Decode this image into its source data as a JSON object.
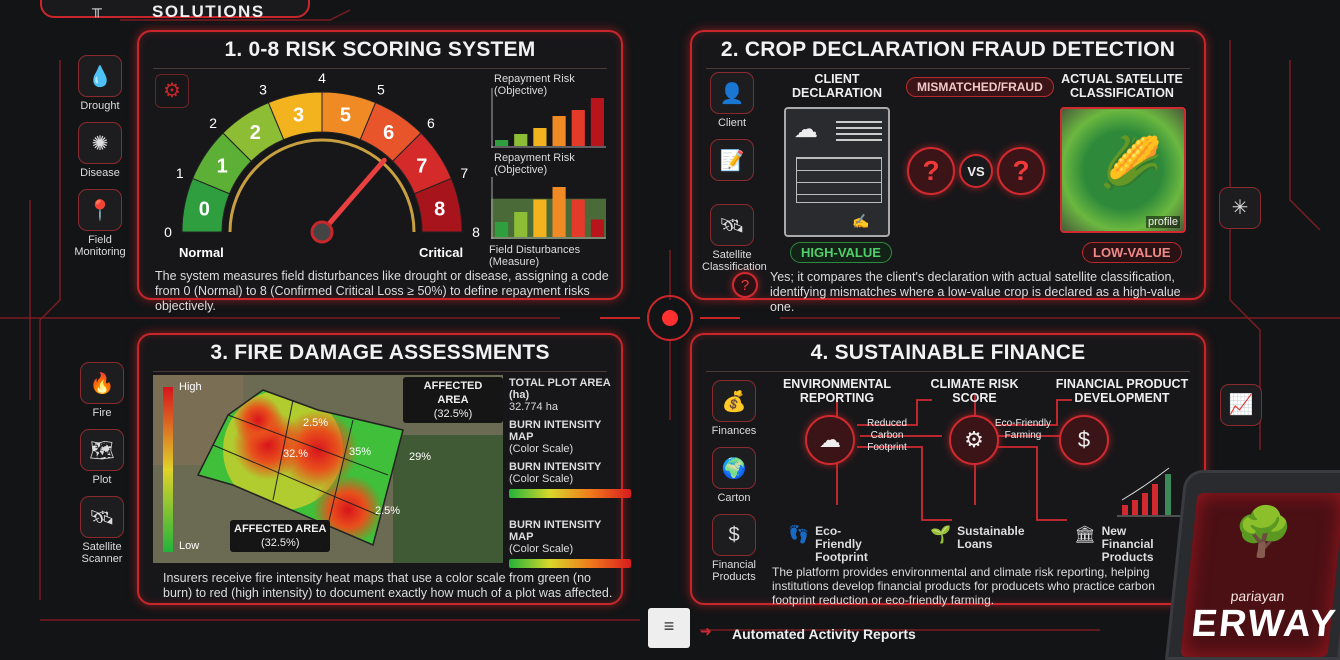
{
  "header": {
    "title_fragment": "SOLUTIONS"
  },
  "panel1": {
    "title": "1. 0-8 RISK SCORING SYSTEM",
    "side_items": [
      {
        "label": "Drought",
        "icon": "drought-icon"
      },
      {
        "label": "Disease",
        "icon": "virus-icon"
      },
      {
        "label": "Field Monitoring",
        "icon": "field-location-icon"
      }
    ],
    "gauge": {
      "outer_labels": [
        "0",
        "1",
        "2",
        "3",
        "4",
        "5",
        "6",
        "7",
        "8"
      ],
      "segment_labels": [
        "0",
        "1",
        "2",
        "3",
        "5",
        "6",
        "7",
        "8"
      ],
      "segment_colors": [
        "#2f9e3e",
        "#5cb035",
        "#8dbd35",
        "#f2b31e",
        "#f08a25",
        "#e8552a",
        "#d42a2a",
        "#a8141c"
      ],
      "needle_value": 6,
      "min_label": "Normal",
      "max_label": "Critical"
    },
    "chart_top": {
      "title": "Repayment Risk (Objective)",
      "values": [
        1,
        2,
        3,
        5,
        6,
        8
      ],
      "colors": [
        "#2f9e3e",
        "#8dbd35",
        "#f2b31e",
        "#f08a25",
        "#e33a2a",
        "#b8141c"
      ]
    },
    "chart_bottom": {
      "title": "Repayment Risk (Objective)",
      "caption": "Field Disturbances (Measure)",
      "values": [
        1.2,
        2,
        3,
        4,
        3,
        1.4
      ],
      "colors": [
        "#2f9e3e",
        "#8dbd35",
        "#f2b31e",
        "#f08a25",
        "#e33a2a",
        "#b8141c"
      ]
    },
    "description": "The system measures field disturbances like drought or disease, assigning a code from 0 (Normal) to 8 (Confirmed Critical Loss ≥ 50%) to define repayment risks objectively."
  },
  "panel2": {
    "title": "2. CROP DECLARATION FRAUD DETECTION",
    "side_items": [
      {
        "label": "Client",
        "icon": "user-icon"
      },
      {
        "label": "",
        "icon": "document-edit-icon"
      },
      {
        "label": "Satellite Classification",
        "icon": "satellite-icon"
      }
    ],
    "client_declaration": "CLIENT DECLARATION",
    "mismatch": "MISMATCHED/FRAUD",
    "satellite": "ACTUAL SATELLITE CLASSIFICATION",
    "vs": "VS",
    "profile": "profile",
    "high_value": "HIGH-VALUE",
    "low_value": "LOW-VALUE",
    "description": "Yes; it compares the client's declaration with actual satellite classification, identifying mismatches where a low-value crop is declared as a high-value one."
  },
  "panel3": {
    "title": "3. FIRE DAMAGE ASSESSMENTS",
    "side_items": [
      {
        "label": "Fire",
        "icon": "fire-icon"
      },
      {
        "label": "Plot",
        "icon": "map-icon"
      },
      {
        "label": "Satellite Scanner",
        "icon": "satellite-icon"
      }
    ],
    "scale_high": "High",
    "scale_low": "Low",
    "cell_labels": [
      "2.5%",
      "32.%",
      "35%",
      "29%",
      "2.5%"
    ],
    "callout_top": {
      "title": "AFFECTED AREA",
      "value": "(32.5%)"
    },
    "callout_bottom": {
      "title": "AFFECTED AREA",
      "value": "(32.5%)"
    },
    "stats": [
      {
        "title": "TOTAL PLOT AREA (ha)",
        "sub": "32.774 ha",
        "bar": false
      },
      {
        "title": "BURN INTENSITY MAP",
        "sub": "(Color Scale)",
        "bar": false
      },
      {
        "title": "BURN INTENSITY",
        "sub": "(Color Scale)",
        "bar": true
      },
      {
        "title": "BURN INTENSITY MAP",
        "sub": "(Color Scale)",
        "bar": true
      }
    ],
    "description": "Insurers receive fire intensity heat maps that use a color scale from green (no burn) to red (high intensity) to document exactly how much of a plot was affected."
  },
  "panel4": {
    "title": "4. SUSTAINABLE FINANCE",
    "side_items": [
      {
        "label": "Finances",
        "icon": "money-bag-icon"
      },
      {
        "label": "Carton",
        "icon": "globe-icon"
      },
      {
        "label": "Financial Products",
        "icon": "dollar-coin-icon"
      }
    ],
    "steps": [
      "ENVIRONMENTAL REPORTING",
      "CLIMATE RISK SCORE",
      "FINANCIAL PRODUCT DEVELOPMENT"
    ],
    "connectors": [
      "Reduced Carbon Footprint",
      "Eco-Friendly Farming"
    ],
    "outcomes": [
      "Eco-Friendly Footprint",
      "Sustainable Loans",
      "New Financial Products"
    ],
    "description": "The platform provides environmental and climate risk reporting, helping institutions develop financial products for producets who practice carbon footprint reduction or eco-friendly farming."
  },
  "footer": {
    "reports": "Automated Activity Reports"
  },
  "brand": {
    "sub": "pariayan",
    "name": "ERWAY"
  },
  "colors": {
    "accent": "#d8262c",
    "background": "#131416",
    "panel": "#18181b"
  }
}
